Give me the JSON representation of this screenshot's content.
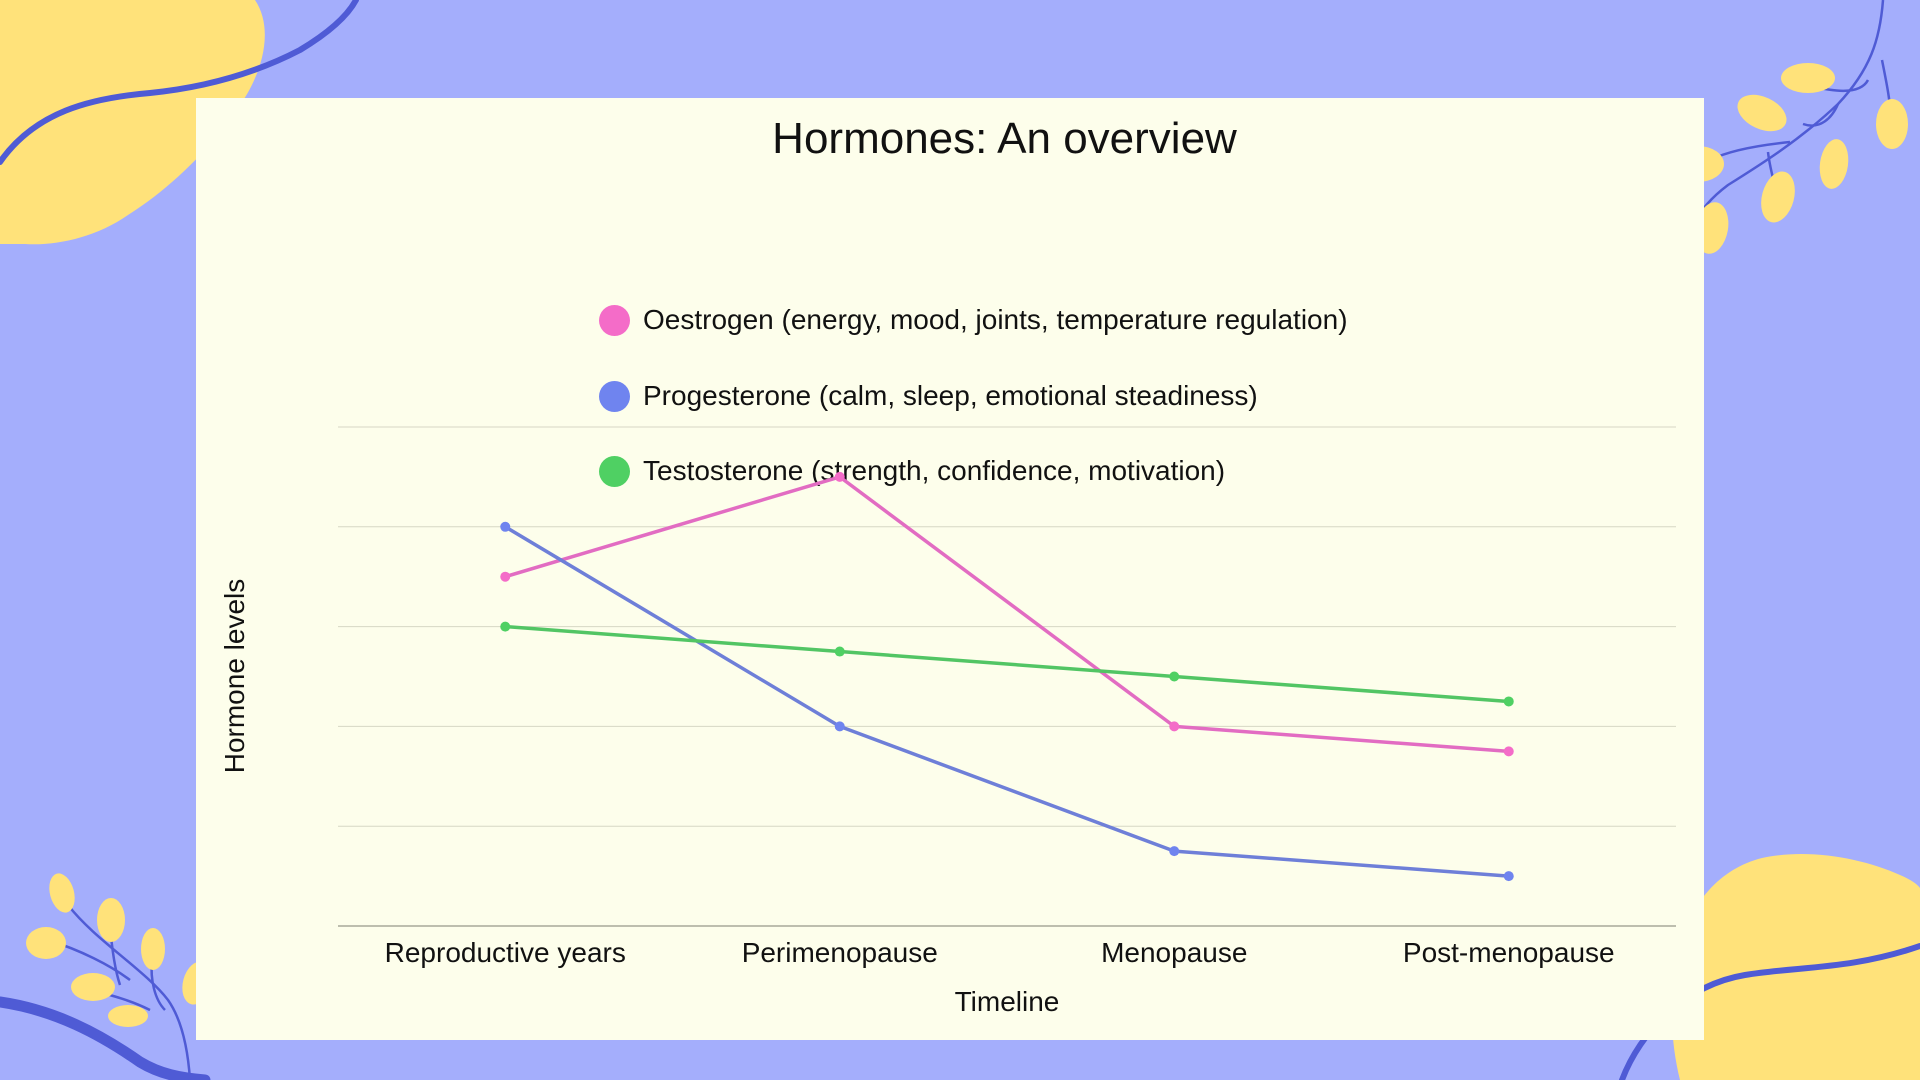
{
  "chart_data": {
    "type": "line",
    "title": "Hormones: An overview",
    "xlabel": "Timeline",
    "ylabel": "Hormone levels",
    "categories": [
      "Reproductive years",
      "Perimenopause",
      "Menopause",
      "Post-menopause"
    ],
    "ylim": [
      0,
      10
    ],
    "y_gridlines": [
      0,
      2,
      4,
      6,
      8,
      10
    ],
    "y_tick_labels_shown": false,
    "grid": true,
    "legend_position": "top-center",
    "series": [
      {
        "name": "Oestrogen (energy, mood, joints, temperature regulation)",
        "color": "#e26cc2",
        "marker_color": "#f46cc8",
        "values": [
          7.0,
          9.0,
          4.0,
          3.5
        ]
      },
      {
        "name": "Progesterone (calm, sleep, emotional steadiness)",
        "color": "#6e7fd8",
        "marker_color": "#6f84ef",
        "values": [
          8.0,
          4.0,
          1.5,
          1.0
        ]
      },
      {
        "name": "Testosterone (strength, confidence, motivation)",
        "color": "#52c564",
        "marker_color": "#4fd063",
        "values": [
          6.0,
          5.5,
          5.0,
          4.5
        ]
      }
    ]
  },
  "colors": {
    "background": "#a4aefc",
    "card": "#fdfeeb",
    "blob": "#ffe27a",
    "vine": "#4f5bd5"
  }
}
